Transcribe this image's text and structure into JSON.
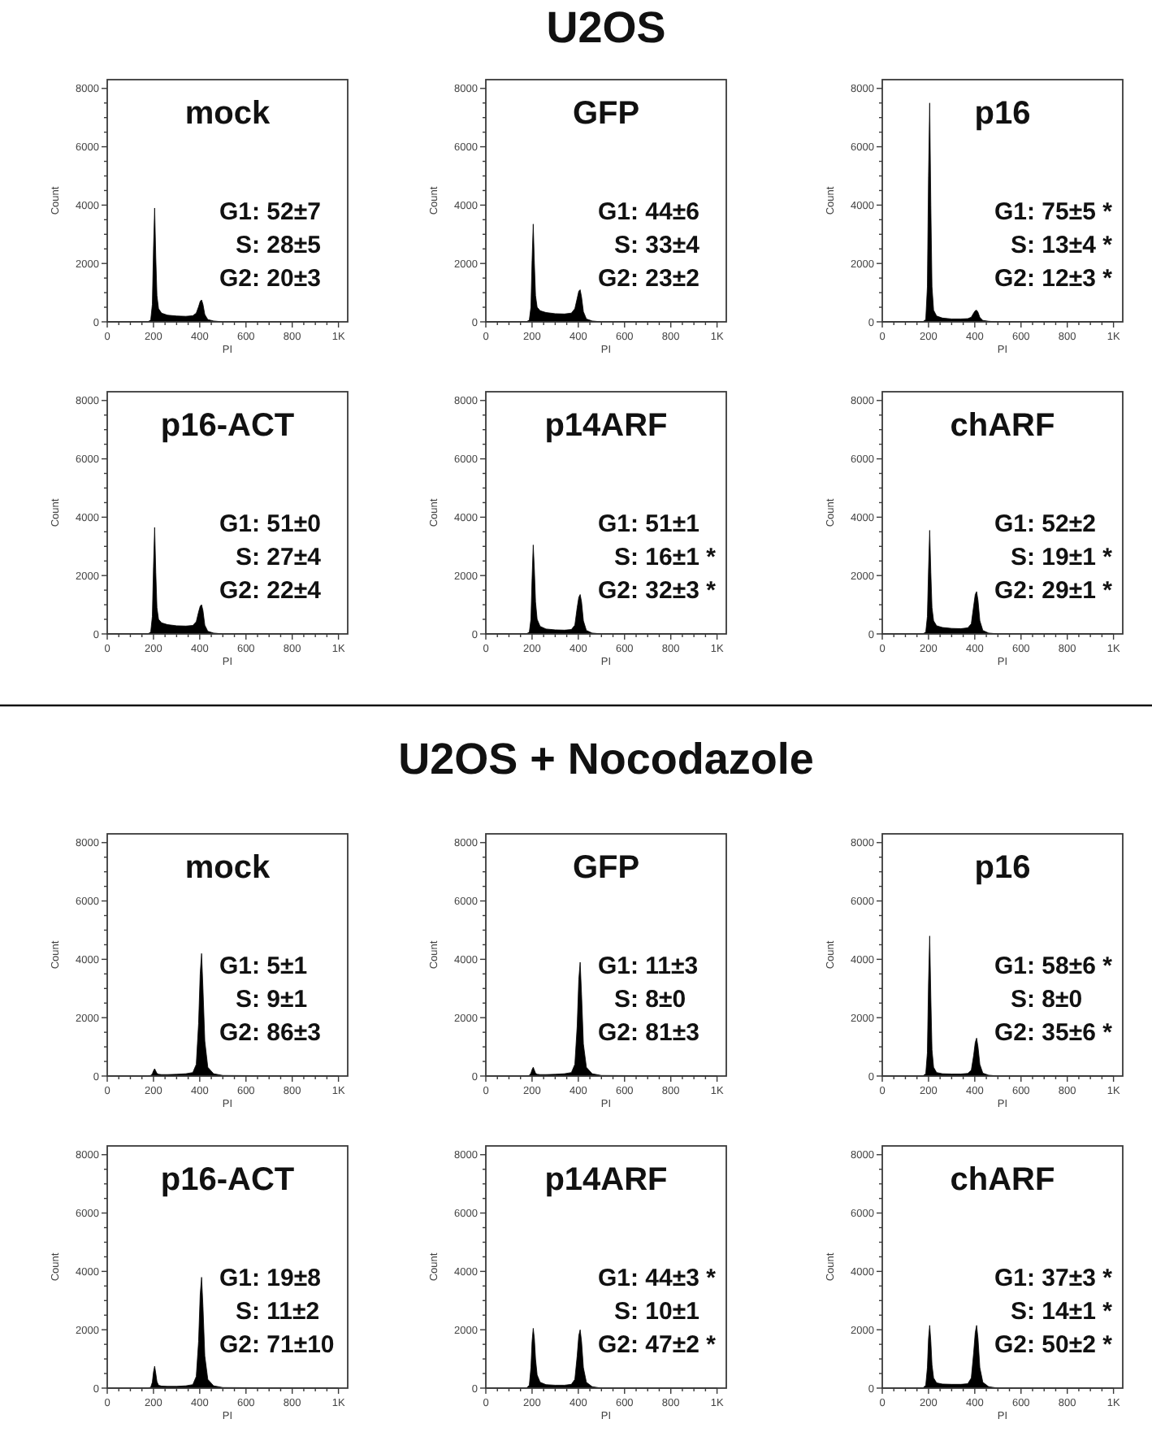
{
  "chart_data": [
    {
      "type": "other",
      "title": "U2OS"
    },
    {
      "type": "area",
      "title": "mock",
      "xlabel": "PI",
      "ylabel": "Count",
      "color": "#000000",
      "xlim": [
        0,
        1040
      ],
      "ylim": [
        0,
        8300
      ],
      "xticks": [
        0,
        {
          "value": 50,
          "label": null
        },
        {
          "value": 100,
          "label": null
        },
        {
          "value": 150,
          "label": null
        },
        200,
        {
          "value": 250,
          "label": null
        },
        {
          "value": 300,
          "label": null
        },
        {
          "value": 350,
          "label": null
        },
        400,
        {
          "value": 450,
          "label": null
        },
        {
          "value": 500,
          "label": null
        },
        {
          "value": 550,
          "label": null
        },
        600,
        {
          "value": 650,
          "label": null
        },
        {
          "value": 700,
          "label": null
        },
        {
          "value": 750,
          "label": null
        },
        800,
        {
          "value": 850,
          "label": null
        },
        {
          "value": 900,
          "label": null
        },
        {
          "value": 950,
          "label": null
        },
        {
          "value": 1000,
          "label": "1K"
        }
      ],
      "yticks": [
        0,
        {
          "value": 500,
          "label": null
        },
        {
          "value": 1000,
          "label": null
        },
        {
          "value": 1500,
          "label": null
        },
        2000,
        {
          "value": 2500,
          "label": null
        },
        {
          "value": 3000,
          "label": null
        },
        {
          "value": 3500,
          "label": null
        },
        4000,
        {
          "value": 4500,
          "label": null
        },
        {
          "value": 5000,
          "label": null
        },
        {
          "value": 5500,
          "label": null
        },
        6000,
        {
          "value": 6500,
          "label": null
        },
        {
          "value": 7000,
          "label": null
        },
        {
          "value": 7500,
          "label": null
        },
        8000
      ],
      "x": [
        0,
        175,
        188,
        195,
        200,
        205,
        210,
        215,
        222,
        235,
        260,
        300,
        340,
        370,
        385,
        395,
        402,
        408,
        414,
        422,
        435,
        460,
        500,
        1000
      ],
      "values": [
        0,
        0,
        60,
        600,
        2500,
        3900,
        2200,
        900,
        450,
        300,
        230,
        200,
        190,
        210,
        300,
        520,
        700,
        750,
        600,
        250,
        80,
        30,
        0,
        0
      ],
      "annotations": [
        "G1: 52±7",
        "S: 28±5",
        "G2: 20±3"
      ]
    },
    {
      "type": "area",
      "title": "GFP",
      "xlabel": "PI",
      "ylabel": "Count",
      "color": "#000000",
      "xlim": [
        0,
        1040
      ],
      "ylim": [
        0,
        8300
      ],
      "xticks": [
        0,
        {
          "value": 50,
          "label": null
        },
        {
          "value": 100,
          "label": null
        },
        {
          "value": 150,
          "label": null
        },
        200,
        {
          "value": 250,
          "label": null
        },
        {
          "value": 300,
          "label": null
        },
        {
          "value": 350,
          "label": null
        },
        400,
        {
          "value": 450,
          "label": null
        },
        {
          "value": 500,
          "label": null
        },
        {
          "value": 550,
          "label": null
        },
        600,
        {
          "value": 650,
          "label": null
        },
        {
          "value": 700,
          "label": null
        },
        {
          "value": 750,
          "label": null
        },
        800,
        {
          "value": 850,
          "label": null
        },
        {
          "value": 900,
          "label": null
        },
        {
          "value": 950,
          "label": null
        },
        {
          "value": 1000,
          "label": "1K"
        }
      ],
      "yticks": [
        0,
        {
          "value": 500,
          "label": null
        },
        {
          "value": 1000,
          "label": null
        },
        {
          "value": 1500,
          "label": null
        },
        2000,
        {
          "value": 2500,
          "label": null
        },
        {
          "value": 3000,
          "label": null
        },
        {
          "value": 3500,
          "label": null
        },
        4000,
        {
          "value": 4500,
          "label": null
        },
        {
          "value": 5000,
          "label": null
        },
        {
          "value": 5500,
          "label": null
        },
        6000,
        {
          "value": 6500,
          "label": null
        },
        {
          "value": 7000,
          "label": null
        },
        {
          "value": 7500,
          "label": null
        },
        8000
      ],
      "x": [
        0,
        175,
        188,
        195,
        200,
        205,
        210,
        215,
        222,
        235,
        260,
        300,
        340,
        370,
        385,
        395,
        402,
        408,
        414,
        422,
        435,
        460,
        500,
        1000
      ],
      "values": [
        0,
        0,
        60,
        500,
        2100,
        3350,
        2000,
        900,
        500,
        380,
        320,
        280,
        270,
        300,
        450,
        800,
        1050,
        1100,
        850,
        350,
        100,
        30,
        0,
        0
      ],
      "annotations": [
        "G1: 44±6",
        "S: 33±4",
        "G2: 23±2"
      ]
    },
    {
      "type": "area",
      "title": "p16",
      "xlabel": "PI",
      "ylabel": "Count",
      "color": "#000000",
      "xlim": [
        0,
        1040
      ],
      "ylim": [
        0,
        8300
      ],
      "xticks": [
        0,
        {
          "value": 50,
          "label": null
        },
        {
          "value": 100,
          "label": null
        },
        {
          "value": 150,
          "label": null
        },
        200,
        {
          "value": 250,
          "label": null
        },
        {
          "value": 300,
          "label": null
        },
        {
          "value": 350,
          "label": null
        },
        400,
        {
          "value": 450,
          "label": null
        },
        {
          "value": 500,
          "label": null
        },
        {
          "value": 550,
          "label": null
        },
        600,
        {
          "value": 650,
          "label": null
        },
        {
          "value": 700,
          "label": null
        },
        {
          "value": 750,
          "label": null
        },
        800,
        {
          "value": 850,
          "label": null
        },
        {
          "value": 900,
          "label": null
        },
        {
          "value": 950,
          "label": null
        },
        {
          "value": 1000,
          "label": "1K"
        }
      ],
      "yticks": [
        0,
        {
          "value": 500,
          "label": null
        },
        {
          "value": 1000,
          "label": null
        },
        {
          "value": 1500,
          "label": null
        },
        2000,
        {
          "value": 2500,
          "label": null
        },
        {
          "value": 3000,
          "label": null
        },
        {
          "value": 3500,
          "label": null
        },
        4000,
        {
          "value": 4500,
          "label": null
        },
        {
          "value": 5000,
          "label": null
        },
        {
          "value": 5500,
          "label": null
        },
        6000,
        {
          "value": 6500,
          "label": null
        },
        {
          "value": 7000,
          "label": null
        },
        {
          "value": 7500,
          "label": null
        },
        8000
      ],
      "x": [
        0,
        175,
        188,
        195,
        200,
        205,
        210,
        215,
        222,
        235,
        260,
        300,
        340,
        370,
        385,
        395,
        402,
        408,
        414,
        422,
        435,
        460,
        500,
        1000
      ],
      "values": [
        0,
        0,
        80,
        1200,
        5000,
        7500,
        4000,
        1200,
        400,
        200,
        130,
        100,
        100,
        110,
        160,
        300,
        380,
        400,
        330,
        150,
        50,
        20,
        0,
        0
      ],
      "annotations": [
        "G1: 75±5 *",
        "S: 13±4 *",
        "G2: 12±3 *"
      ]
    },
    {
      "type": "area",
      "title": "p16-ACT",
      "xlabel": "PI",
      "ylabel": "Count",
      "color": "#000000",
      "xlim": [
        0,
        1040
      ],
      "ylim": [
        0,
        8300
      ],
      "xticks": [
        0,
        {
          "value": 50,
          "label": null
        },
        {
          "value": 100,
          "label": null
        },
        {
          "value": 150,
          "label": null
        },
        200,
        {
          "value": 250,
          "label": null
        },
        {
          "value": 300,
          "label": null
        },
        {
          "value": 350,
          "label": null
        },
        400,
        {
          "value": 450,
          "label": null
        },
        {
          "value": 500,
          "label": null
        },
        {
          "value": 550,
          "label": null
        },
        600,
        {
          "value": 650,
          "label": null
        },
        {
          "value": 700,
          "label": null
        },
        {
          "value": 750,
          "label": null
        },
        800,
        {
          "value": 850,
          "label": null
        },
        {
          "value": 900,
          "label": null
        },
        {
          "value": 950,
          "label": null
        },
        {
          "value": 1000,
          "label": "1K"
        }
      ],
      "yticks": [
        0,
        {
          "value": 500,
          "label": null
        },
        {
          "value": 1000,
          "label": null
        },
        {
          "value": 1500,
          "label": null
        },
        2000,
        {
          "value": 2500,
          "label": null
        },
        {
          "value": 3000,
          "label": null
        },
        {
          "value": 3500,
          "label": null
        },
        4000,
        {
          "value": 4500,
          "label": null
        },
        {
          "value": 5000,
          "label": null
        },
        {
          "value": 5500,
          "label": null
        },
        6000,
        {
          "value": 6500,
          "label": null
        },
        {
          "value": 7000,
          "label": null
        },
        {
          "value": 7500,
          "label": null
        },
        8000
      ],
      "x": [
        0,
        175,
        188,
        195,
        200,
        205,
        210,
        215,
        222,
        235,
        260,
        300,
        340,
        370,
        385,
        395,
        402,
        408,
        414,
        422,
        435,
        460,
        500,
        1000
      ],
      "values": [
        0,
        0,
        60,
        600,
        2300,
        3650,
        2100,
        900,
        500,
        380,
        320,
        280,
        270,
        290,
        420,
        750,
        950,
        1000,
        800,
        300,
        90,
        30,
        0,
        0
      ],
      "annotations": [
        "G1: 51±0",
        "S: 27±4",
        "G2: 22±4"
      ]
    },
    {
      "type": "area",
      "title": "p14ARF",
      "xlabel": "PI",
      "ylabel": "Count",
      "color": "#000000",
      "xlim": [
        0,
        1040
      ],
      "ylim": [
        0,
        8300
      ],
      "xticks": [
        0,
        {
          "value": 50,
          "label": null
        },
        {
          "value": 100,
          "label": null
        },
        {
          "value": 150,
          "label": null
        },
        200,
        {
          "value": 250,
          "label": null
        },
        {
          "value": 300,
          "label": null
        },
        {
          "value": 350,
          "label": null
        },
        400,
        {
          "value": 450,
          "label": null
        },
        {
          "value": 500,
          "label": null
        },
        {
          "value": 550,
          "label": null
        },
        600,
        {
          "value": 650,
          "label": null
        },
        {
          "value": 700,
          "label": null
        },
        {
          "value": 750,
          "label": null
        },
        800,
        {
          "value": 850,
          "label": null
        },
        {
          "value": 900,
          "label": null
        },
        {
          "value": 950,
          "label": null
        },
        {
          "value": 1000,
          "label": "1K"
        }
      ],
      "yticks": [
        0,
        {
          "value": 500,
          "label": null
        },
        {
          "value": 1000,
          "label": null
        },
        {
          "value": 1500,
          "label": null
        },
        2000,
        {
          "value": 2500,
          "label": null
        },
        {
          "value": 3000,
          "label": null
        },
        {
          "value": 3500,
          "label": null
        },
        4000,
        {
          "value": 4500,
          "label": null
        },
        {
          "value": 5000,
          "label": null
        },
        {
          "value": 5500,
          "label": null
        },
        6000,
        {
          "value": 6500,
          "label": null
        },
        {
          "value": 7000,
          "label": null
        },
        {
          "value": 7500,
          "label": null
        },
        8000
      ],
      "x": [
        0,
        175,
        188,
        195,
        200,
        205,
        210,
        215,
        222,
        235,
        260,
        300,
        340,
        370,
        385,
        395,
        402,
        408,
        414,
        422,
        435,
        460,
        500,
        1000
      ],
      "values": [
        0,
        0,
        60,
        500,
        1900,
        3050,
        2200,
        1100,
        500,
        260,
        170,
        140,
        130,
        150,
        300,
        900,
        1250,
        1350,
        1100,
        450,
        120,
        30,
        0,
        0
      ],
      "annotations": [
        "G1: 51±1",
        "S: 16±1 *",
        "G2: 32±3 *"
      ]
    },
    {
      "type": "area",
      "title": "chARF",
      "xlabel": "PI",
      "ylabel": "Count",
      "color": "#000000",
      "xlim": [
        0,
        1040
      ],
      "ylim": [
        0,
        8300
      ],
      "xticks": [
        0,
        {
          "value": 50,
          "label": null
        },
        {
          "value": 100,
          "label": null
        },
        {
          "value": 150,
          "label": null
        },
        200,
        {
          "value": 250,
          "label": null
        },
        {
          "value": 300,
          "label": null
        },
        {
          "value": 350,
          "label": null
        },
        400,
        {
          "value": 450,
          "label": null
        },
        {
          "value": 500,
          "label": null
        },
        {
          "value": 550,
          "label": null
        },
        600,
        {
          "value": 650,
          "label": null
        },
        {
          "value": 700,
          "label": null
        },
        {
          "value": 750,
          "label": null
        },
        800,
        {
          "value": 850,
          "label": null
        },
        {
          "value": 900,
          "label": null
        },
        {
          "value": 950,
          "label": null
        },
        {
          "value": 1000,
          "label": "1K"
        }
      ],
      "yticks": [
        0,
        {
          "value": 500,
          "label": null
        },
        {
          "value": 1000,
          "label": null
        },
        {
          "value": 1500,
          "label": null
        },
        2000,
        {
          "value": 2500,
          "label": null
        },
        {
          "value": 3000,
          "label": null
        },
        {
          "value": 3500,
          "label": null
        },
        4000,
        {
          "value": 4500,
          "label": null
        },
        {
          "value": 5000,
          "label": null
        },
        {
          "value": 5500,
          "label": null
        },
        6000,
        {
          "value": 6500,
          "label": null
        },
        {
          "value": 7000,
          "label": null
        },
        {
          "value": 7500,
          "label": null
        },
        8000
      ],
      "x": [
        0,
        175,
        188,
        195,
        200,
        205,
        210,
        215,
        222,
        235,
        260,
        300,
        340,
        370,
        385,
        395,
        402,
        408,
        414,
        422,
        435,
        460,
        500,
        1000
      ],
      "values": [
        0,
        0,
        60,
        600,
        2200,
        3550,
        2100,
        900,
        450,
        280,
        220,
        190,
        180,
        210,
        350,
        950,
        1350,
        1450,
        1150,
        450,
        120,
        30,
        0,
        0
      ],
      "annotations": [
        "G1: 52±2",
        "S: 19±1 *",
        "G2: 29±1 *"
      ]
    },
    {
      "type": "other",
      "title": "U2OS + Nocodazole"
    },
    {
      "type": "area",
      "title": "mock",
      "xlabel": "PI",
      "ylabel": "Count",
      "color": "#000000",
      "xlim": [
        0,
        1040
      ],
      "ylim": [
        0,
        8300
      ],
      "xticks": [
        0,
        {
          "value": 50,
          "label": null
        },
        {
          "value": 100,
          "label": null
        },
        {
          "value": 150,
          "label": null
        },
        200,
        {
          "value": 250,
          "label": null
        },
        {
          "value": 300,
          "label": null
        },
        {
          "value": 350,
          "label": null
        },
        400,
        {
          "value": 450,
          "label": null
        },
        {
          "value": 500,
          "label": null
        },
        {
          "value": 550,
          "label": null
        },
        600,
        {
          "value": 650,
          "label": null
        },
        {
          "value": 700,
          "label": null
        },
        {
          "value": 750,
          "label": null
        },
        800,
        {
          "value": 850,
          "label": null
        },
        {
          "value": 900,
          "label": null
        },
        {
          "value": 950,
          "label": null
        },
        {
          "value": 1000,
          "label": "1K"
        }
      ],
      "yticks": [
        0,
        {
          "value": 500,
          "label": null
        },
        {
          "value": 1000,
          "label": null
        },
        {
          "value": 1500,
          "label": null
        },
        2000,
        {
          "value": 2500,
          "label": null
        },
        {
          "value": 3000,
          "label": null
        },
        {
          "value": 3500,
          "label": null
        },
        4000,
        {
          "value": 4500,
          "label": null
        },
        {
          "value": 5000,
          "label": null
        },
        {
          "value": 5500,
          "label": null
        },
        6000,
        {
          "value": 6500,
          "label": null
        },
        {
          "value": 7000,
          "label": null
        },
        {
          "value": 7500,
          "label": null
        },
        8000
      ],
      "x": [
        0,
        175,
        188,
        195,
        200,
        205,
        210,
        215,
        222,
        235,
        260,
        300,
        340,
        370,
        385,
        395,
        402,
        408,
        414,
        422,
        435,
        460,
        500,
        1000
      ],
      "values": [
        0,
        0,
        20,
        80,
        180,
        250,
        170,
        90,
        60,
        50,
        50,
        60,
        80,
        120,
        400,
        1800,
        3500,
        4200,
        3000,
        1200,
        300,
        80,
        20,
        0
      ],
      "annotations": [
        "G1: 5±1",
        "S: 9±1",
        "G2: 86±3"
      ]
    },
    {
      "type": "area",
      "title": "GFP",
      "xlabel": "PI",
      "ylabel": "Count",
      "color": "#000000",
      "xlim": [
        0,
        1040
      ],
      "ylim": [
        0,
        8300
      ],
      "xticks": [
        0,
        {
          "value": 50,
          "label": null
        },
        {
          "value": 100,
          "label": null
        },
        {
          "value": 150,
          "label": null
        },
        200,
        {
          "value": 250,
          "label": null
        },
        {
          "value": 300,
          "label": null
        },
        {
          "value": 350,
          "label": null
        },
        400,
        {
          "value": 450,
          "label": null
        },
        {
          "value": 500,
          "label": null
        },
        {
          "value": 550,
          "label": null
        },
        600,
        {
          "value": 650,
          "label": null
        },
        {
          "value": 700,
          "label": null
        },
        {
          "value": 750,
          "label": null
        },
        800,
        {
          "value": 850,
          "label": null
        },
        {
          "value": 900,
          "label": null
        },
        {
          "value": 950,
          "label": null
        },
        {
          "value": 1000,
          "label": "1K"
        }
      ],
      "yticks": [
        0,
        {
          "value": 500,
          "label": null
        },
        {
          "value": 1000,
          "label": null
        },
        {
          "value": 1500,
          "label": null
        },
        2000,
        {
          "value": 2500,
          "label": null
        },
        {
          "value": 3000,
          "label": null
        },
        {
          "value": 3500,
          "label": null
        },
        4000,
        {
          "value": 4500,
          "label": null
        },
        {
          "value": 5000,
          "label": null
        },
        {
          "value": 5500,
          "label": null
        },
        6000,
        {
          "value": 6500,
          "label": null
        },
        {
          "value": 7000,
          "label": null
        },
        {
          "value": 7500,
          "label": null
        },
        8000
      ],
      "x": [
        0,
        175,
        188,
        195,
        200,
        205,
        210,
        215,
        222,
        235,
        260,
        300,
        340,
        370,
        385,
        395,
        402,
        408,
        414,
        422,
        435,
        460,
        500,
        1000
      ],
      "values": [
        0,
        0,
        20,
        100,
        220,
        300,
        200,
        100,
        60,
        50,
        50,
        60,
        80,
        120,
        400,
        1700,
        3300,
        3900,
        2800,
        1100,
        300,
        80,
        20,
        0
      ],
      "annotations": [
        "G1: 11±3",
        "S: 8±0",
        "G2: 81±3"
      ]
    },
    {
      "type": "area",
      "title": "p16",
      "xlabel": "PI",
      "ylabel": "Count",
      "color": "#000000",
      "xlim": [
        0,
        1040
      ],
      "ylim": [
        0,
        8300
      ],
      "xticks": [
        0,
        {
          "value": 50,
          "label": null
        },
        {
          "value": 100,
          "label": null
        },
        {
          "value": 150,
          "label": null
        },
        200,
        {
          "value": 250,
          "label": null
        },
        {
          "value": 300,
          "label": null
        },
        {
          "value": 350,
          "label": null
        },
        400,
        {
          "value": 450,
          "label": null
        },
        {
          "value": 500,
          "label": null
        },
        {
          "value": 550,
          "label": null
        },
        600,
        {
          "value": 650,
          "label": null
        },
        {
          "value": 700,
          "label": null
        },
        {
          "value": 750,
          "label": null
        },
        800,
        {
          "value": 850,
          "label": null
        },
        {
          "value": 900,
          "label": null
        },
        {
          "value": 950,
          "label": null
        },
        {
          "value": 1000,
          "label": "1K"
        }
      ],
      "yticks": [
        0,
        {
          "value": 500,
          "label": null
        },
        {
          "value": 1000,
          "label": null
        },
        {
          "value": 1500,
          "label": null
        },
        2000,
        {
          "value": 2500,
          "label": null
        },
        {
          "value": 3000,
          "label": null
        },
        {
          "value": 3500,
          "label": null
        },
        4000,
        {
          "value": 4500,
          "label": null
        },
        {
          "value": 5000,
          "label": null
        },
        {
          "value": 5500,
          "label": null
        },
        6000,
        {
          "value": 6500,
          "label": null
        },
        {
          "value": 7000,
          "label": null
        },
        {
          "value": 7500,
          "label": null
        },
        8000
      ],
      "x": [
        0,
        175,
        188,
        195,
        200,
        205,
        210,
        215,
        222,
        235,
        260,
        300,
        340,
        370,
        385,
        395,
        402,
        408,
        414,
        422,
        435,
        460,
        500,
        1000
      ],
      "values": [
        0,
        0,
        80,
        800,
        3200,
        4800,
        2700,
        900,
        300,
        120,
        80,
        70,
        70,
        90,
        200,
        700,
        1150,
        1300,
        1000,
        400,
        100,
        30,
        0,
        0
      ],
      "annotations": [
        "G1: 58±6 *",
        "S: 8±0",
        "G2: 35±6 *"
      ]
    },
    {
      "type": "area",
      "title": "p16-ACT",
      "xlabel": "PI",
      "ylabel": "Count",
      "color": "#000000",
      "xlim": [
        0,
        1040
      ],
      "ylim": [
        0,
        8300
      ],
      "xticks": [
        0,
        {
          "value": 50,
          "label": null
        },
        {
          "value": 100,
          "label": null
        },
        {
          "value": 150,
          "label": null
        },
        200,
        {
          "value": 250,
          "label": null
        },
        {
          "value": 300,
          "label": null
        },
        {
          "value": 350,
          "label": null
        },
        400,
        {
          "value": 450,
          "label": null
        },
        {
          "value": 500,
          "label": null
        },
        {
          "value": 550,
          "label": null
        },
        600,
        {
          "value": 650,
          "label": null
        },
        {
          "value": 700,
          "label": null
        },
        {
          "value": 750,
          "label": null
        },
        800,
        {
          "value": 850,
          "label": null
        },
        {
          "value": 900,
          "label": null
        },
        {
          "value": 950,
          "label": null
        },
        {
          "value": 1000,
          "label": "1K"
        }
      ],
      "yticks": [
        0,
        {
          "value": 500,
          "label": null
        },
        {
          "value": 1000,
          "label": null
        },
        {
          "value": 1500,
          "label": null
        },
        2000,
        {
          "value": 2500,
          "label": null
        },
        {
          "value": 3000,
          "label": null
        },
        {
          "value": 3500,
          "label": null
        },
        4000,
        {
          "value": 4500,
          "label": null
        },
        {
          "value": 5000,
          "label": null
        },
        {
          "value": 5500,
          "label": null
        },
        6000,
        {
          "value": 6500,
          "label": null
        },
        {
          "value": 7000,
          "label": null
        },
        {
          "value": 7500,
          "label": null
        },
        8000
      ],
      "x": [
        0,
        175,
        188,
        195,
        200,
        205,
        210,
        215,
        222,
        235,
        260,
        300,
        340,
        370,
        385,
        395,
        402,
        408,
        414,
        422,
        435,
        460,
        500,
        1000
      ],
      "values": [
        0,
        0,
        30,
        200,
        550,
        750,
        500,
        220,
        100,
        70,
        60,
        60,
        80,
        120,
        400,
        1600,
        3200,
        3800,
        2800,
        1100,
        300,
        80,
        20,
        0
      ],
      "annotations": [
        "G1: 19±8",
        "S: 11±2",
        "G2: 71±10"
      ]
    },
    {
      "type": "area",
      "title": "p14ARF",
      "xlabel": "PI",
      "ylabel": "Count",
      "color": "#000000",
      "xlim": [
        0,
        1040
      ],
      "ylim": [
        0,
        8300
      ],
      "xticks": [
        0,
        {
          "value": 50,
          "label": null
        },
        {
          "value": 100,
          "label": null
        },
        {
          "value": 150,
          "label": null
        },
        200,
        {
          "value": 250,
          "label": null
        },
        {
          "value": 300,
          "label": null
        },
        {
          "value": 350,
          "label": null
        },
        400,
        {
          "value": 450,
          "label": null
        },
        {
          "value": 500,
          "label": null
        },
        {
          "value": 550,
          "label": null
        },
        600,
        {
          "value": 650,
          "label": null
        },
        {
          "value": 700,
          "label": null
        },
        {
          "value": 750,
          "label": null
        },
        800,
        {
          "value": 850,
          "label": null
        },
        {
          "value": 900,
          "label": null
        },
        {
          "value": 950,
          "label": null
        },
        {
          "value": 1000,
          "label": "1K"
        }
      ],
      "yticks": [
        0,
        {
          "value": 500,
          "label": null
        },
        {
          "value": 1000,
          "label": null
        },
        {
          "value": 1500,
          "label": null
        },
        2000,
        {
          "value": 2500,
          "label": null
        },
        {
          "value": 3000,
          "label": null
        },
        {
          "value": 3500,
          "label": null
        },
        4000,
        {
          "value": 4500,
          "label": null
        },
        {
          "value": 5000,
          "label": null
        },
        {
          "value": 5500,
          "label": null
        },
        6000,
        {
          "value": 6500,
          "label": null
        },
        {
          "value": 7000,
          "label": null
        },
        {
          "value": 7500,
          "label": null
        },
        8000
      ],
      "x": [
        0,
        175,
        188,
        195,
        200,
        205,
        210,
        215,
        222,
        235,
        260,
        300,
        340,
        370,
        385,
        395,
        402,
        408,
        414,
        422,
        435,
        460,
        500,
        1000
      ],
      "values": [
        0,
        0,
        100,
        700,
        1600,
        2050,
        1700,
        1000,
        450,
        200,
        120,
        100,
        100,
        130,
        300,
        1100,
        1800,
        2000,
        1600,
        700,
        200,
        50,
        0,
        0
      ],
      "annotations": [
        "G1: 44±3 *",
        "S: 10±1",
        "G2: 47±2 *"
      ]
    },
    {
      "type": "area",
      "title": "chARF",
      "xlabel": "PI",
      "ylabel": "Count",
      "color": "#000000",
      "xlim": [
        0,
        1040
      ],
      "ylim": [
        0,
        8300
      ],
      "xticks": [
        0,
        {
          "value": 50,
          "label": null
        },
        {
          "value": 100,
          "label": null
        },
        {
          "value": 150,
          "label": null
        },
        200,
        {
          "value": 250,
          "label": null
        },
        {
          "value": 300,
          "label": null
        },
        {
          "value": 350,
          "label": null
        },
        400,
        {
          "value": 450,
          "label": null
        },
        {
          "value": 500,
          "label": null
        },
        {
          "value": 550,
          "label": null
        },
        600,
        {
          "value": 650,
          "label": null
        },
        {
          "value": 700,
          "label": null
        },
        {
          "value": 750,
          "label": null
        },
        800,
        {
          "value": 850,
          "label": null
        },
        {
          "value": 900,
          "label": null
        },
        {
          "value": 950,
          "label": null
        },
        {
          "value": 1000,
          "label": "1K"
        }
      ],
      "yticks": [
        0,
        {
          "value": 500,
          "label": null
        },
        {
          "value": 1000,
          "label": null
        },
        {
          "value": 1500,
          "label": null
        },
        2000,
        {
          "value": 2500,
          "label": null
        },
        {
          "value": 3000,
          "label": null
        },
        {
          "value": 3500,
          "label": null
        },
        4000,
        {
          "value": 4500,
          "label": null
        },
        {
          "value": 5000,
          "label": null
        },
        {
          "value": 5500,
          "label": null
        },
        6000,
        {
          "value": 6500,
          "label": null
        },
        {
          "value": 7000,
          "label": null
        },
        {
          "value": 7500,
          "label": null
        },
        8000
      ],
      "x": [
        0,
        175,
        188,
        195,
        200,
        205,
        210,
        215,
        222,
        235,
        260,
        300,
        340,
        370,
        385,
        395,
        402,
        408,
        414,
        422,
        435,
        460,
        500,
        1000
      ],
      "values": [
        0,
        0,
        100,
        700,
        1700,
        2150,
        1600,
        800,
        350,
        180,
        140,
        130,
        130,
        150,
        350,
        1200,
        1900,
        2150,
        1700,
        700,
        200,
        50,
        0,
        0
      ],
      "annotations": [
        "G1: 37±3 *",
        "S: 14±1 *",
        "G2: 50±2 *"
      ]
    }
  ]
}
